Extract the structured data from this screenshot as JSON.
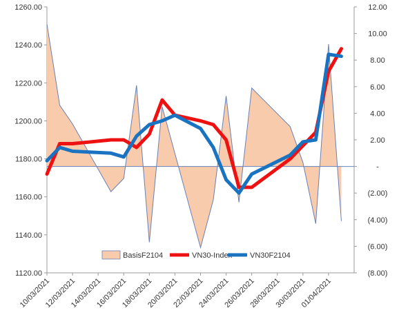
{
  "chart_data": {
    "type": "area+line",
    "dates": [
      "10/03/2021",
      "11/03/2021",
      "12/03/2021",
      "15/03/2021",
      "16/03/2021",
      "17/03/2021",
      "18/03/2021",
      "19/03/2021",
      "22/03/2021",
      "23/03/2021",
      "24/03/2021",
      "25/03/2021",
      "26/03/2021",
      "29/03/2021",
      "30/03/2021",
      "31/03/2021",
      "01/04/2021",
      "02/04/2021"
    ],
    "x_tick_labels": [
      "10/03/2021",
      "12/03/2021",
      "14/03/2021",
      "16/03/2021",
      "18/03/2021",
      "20/03/2021",
      "22/03/2021",
      "24/03/2021",
      "26/03/2021",
      "28/03/2021",
      "30/03/2021",
      "01/04/2021"
    ],
    "left_axis": {
      "min": 1120,
      "max": 1260,
      "step": 20,
      "tick_labels": [
        "1120.00",
        "1140.00",
        "1160.00",
        "1180.00",
        "1200.00",
        "1220.00",
        "1240.00",
        "1260.00"
      ]
    },
    "right_axis": {
      "min": -8,
      "max": 12,
      "step": 2,
      "tick_labels": [
        "(8.00)",
        "(6.00)",
        "(4.00)",
        "(2.00)",
        "-",
        "2.00",
        "4.00",
        "6.00",
        "8.00",
        "10.00",
        "12.00"
      ]
    },
    "series": [
      {
        "name": "BasisF2104",
        "axis": "right",
        "kind": "area",
        "points": [
          [
            "2021-03-10",
            10.7
          ],
          [
            "2021-03-11",
            4.6
          ],
          [
            "2021-03-12",
            3.2
          ],
          [
            "2021-03-15",
            -1.9
          ],
          [
            "2021-03-16",
            -0.9
          ],
          [
            "2021-03-17",
            6.1
          ],
          [
            "2021-03-18",
            -5.7
          ],
          [
            "2021-03-19",
            4.5
          ],
          [
            "2021-03-22",
            -6.1
          ],
          [
            "2021-03-23",
            -2.5
          ],
          [
            "2021-03-24",
            5.3
          ],
          [
            "2021-03-25",
            -2.7
          ],
          [
            "2021-03-26",
            5.9
          ],
          [
            "2021-03-29",
            3.0
          ],
          [
            "2021-03-30",
            0.3
          ],
          [
            "2021-03-31",
            -4.3
          ],
          [
            "2021-04-01",
            9.2
          ],
          [
            "2021-04-02",
            -4.1
          ]
        ]
      },
      {
        "name": "VN30-Index",
        "axis": "left",
        "kind": "line",
        "color": "#ee1111",
        "points": [
          [
            "2021-03-10",
            1172
          ],
          [
            "2021-03-11",
            1188
          ],
          [
            "2021-03-12",
            1188
          ],
          [
            "2021-03-15",
            1190
          ],
          [
            "2021-03-16",
            1190
          ],
          [
            "2021-03-17",
            1186
          ],
          [
            "2021-03-18",
            1193
          ],
          [
            "2021-03-19",
            1211
          ],
          [
            "2021-03-20",
            1203
          ],
          [
            "2021-03-22",
            1200
          ],
          [
            "2021-03-23",
            1198
          ],
          [
            "2021-03-24",
            1190
          ],
          [
            "2021-03-25",
            1165
          ],
          [
            "2021-03-26",
            1165
          ],
          [
            "2021-03-29",
            1180
          ],
          [
            "2021-03-31",
            1194
          ],
          [
            "2021-04-01",
            1226
          ],
          [
            "2021-04-02",
            1238
          ]
        ]
      },
      {
        "name": "VN30F2104",
        "axis": "left",
        "kind": "line",
        "color": "#1a73c0",
        "points": [
          [
            "2021-03-10",
            1179
          ],
          [
            "2021-03-11",
            1186
          ],
          [
            "2021-03-12",
            1184
          ],
          [
            "2021-03-15",
            1183
          ],
          [
            "2021-03-16",
            1181
          ],
          [
            "2021-03-17",
            1192
          ],
          [
            "2021-03-18",
            1198
          ],
          [
            "2021-03-19",
            1200
          ],
          [
            "2021-03-20",
            1203
          ],
          [
            "2021-03-22",
            1196
          ],
          [
            "2021-03-23",
            1186
          ],
          [
            "2021-03-24",
            1169
          ],
          [
            "2021-03-25",
            1162
          ],
          [
            "2021-03-26",
            1172
          ],
          [
            "2021-03-29",
            1182
          ],
          [
            "2021-03-30",
            1189
          ],
          [
            "2021-03-31",
            1190
          ],
          [
            "2021-04-01",
            1235
          ],
          [
            "2021-04-02",
            1234
          ]
        ]
      }
    ],
    "colors": {
      "area_fill": "#f8cbad",
      "area_stroke": "#6680b8",
      "zero_line": "#6680b8",
      "axis": "#999999"
    },
    "legend_position": "bottom-center",
    "grid": false
  }
}
